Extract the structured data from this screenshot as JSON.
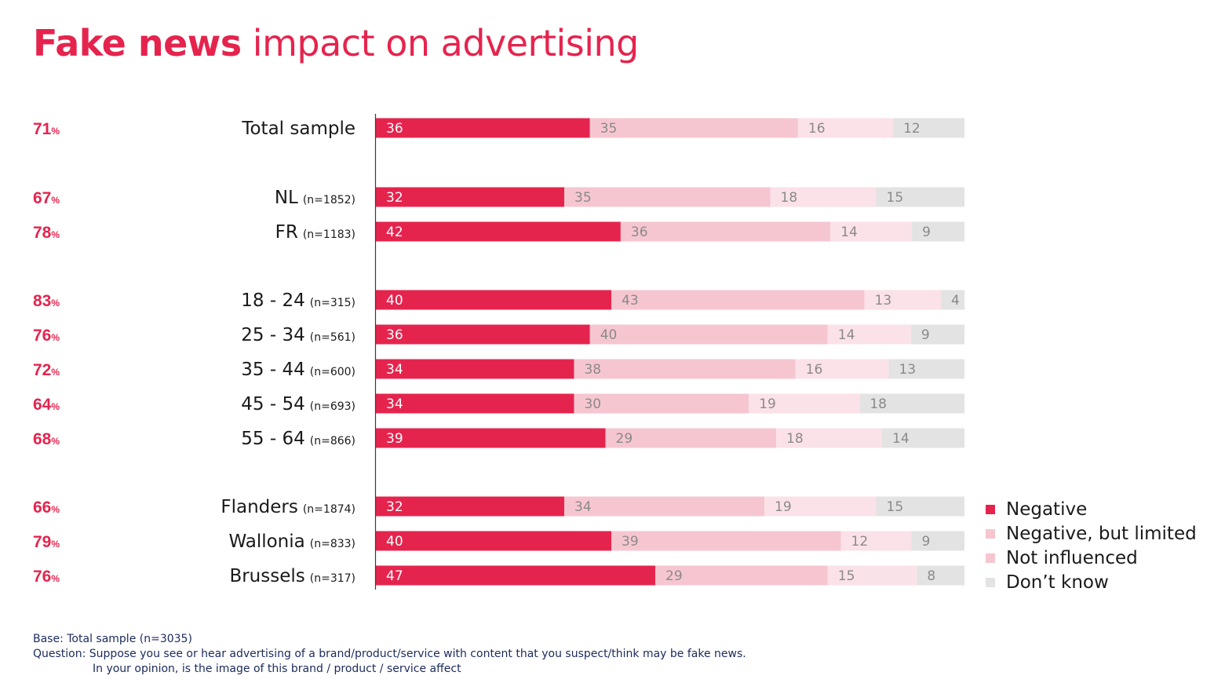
{
  "title": {
    "bold": "Fake news",
    "rest": "impact on advertising"
  },
  "percent_sign": "%",
  "colors": {
    "negative": "#e5244e",
    "negative_limited": "#f6c6d0",
    "not_influenced": "#fbe2e8",
    "dont_know": "#e3e3e3",
    "label_on_dark": "#ffffff",
    "label_on_light": "#8a8a8a"
  },
  "chart_data": {
    "type": "bar",
    "orientation": "horizontal",
    "stacked": true,
    "xlim": [
      0,
      100
    ],
    "series_names": [
      "Negative",
      "Negative, but limited",
      "Not influenced",
      "Don’t know"
    ],
    "rows": [
      {
        "label": "Total sample",
        "n": "",
        "total": "71",
        "values": [
          36,
          35,
          16,
          12
        ]
      },
      {
        "label": "NL",
        "n": "(n=1852)",
        "total": "67",
        "values": [
          32,
          35,
          18,
          15
        ]
      },
      {
        "label": "FR",
        "n": "(n=1183)",
        "total": "78",
        "values": [
          42,
          36,
          14,
          9
        ]
      },
      {
        "label": "18 - 24",
        "n": "(n=315)",
        "total": "83",
        "values": [
          40,
          43,
          13,
          4
        ]
      },
      {
        "label": "25 - 34",
        "n": "(n=561)",
        "total": "76",
        "values": [
          36,
          40,
          14,
          9
        ]
      },
      {
        "label": "35 - 44",
        "n": "(n=600)",
        "total": "72",
        "values": [
          34,
          38,
          16,
          13
        ]
      },
      {
        "label": "45 - 54",
        "n": "(n=693)",
        "total": "64",
        "values": [
          34,
          30,
          19,
          18
        ]
      },
      {
        "label": "55 - 64",
        "n": "(n=866)",
        "total": "68",
        "values": [
          39,
          29,
          18,
          14
        ]
      },
      {
        "label": "Flanders",
        "n": "(n=1874)",
        "total": "66",
        "values": [
          32,
          34,
          19,
          15
        ]
      },
      {
        "label": "Wallonia",
        "n": "(n=833)",
        "total": "79",
        "values": [
          40,
          39,
          12,
          9
        ]
      },
      {
        "label": "Brussels",
        "n": "(n=317)",
        "total": "76",
        "values": [
          47,
          29,
          15,
          8
        ]
      }
    ],
    "legend": [
      "Negative",
      "Negative, but limited",
      "Not influenced",
      "Don’t know"
    ],
    "legend_position": "right"
  },
  "footnote": {
    "base": "Base: Total sample (n=3035)",
    "question": "Question: Suppose you see or hear advertising of a brand/product/service with content that you suspect/think may be fake news.",
    "question_cont": "In your opinion, is the image of this brand / product / service affect"
  }
}
